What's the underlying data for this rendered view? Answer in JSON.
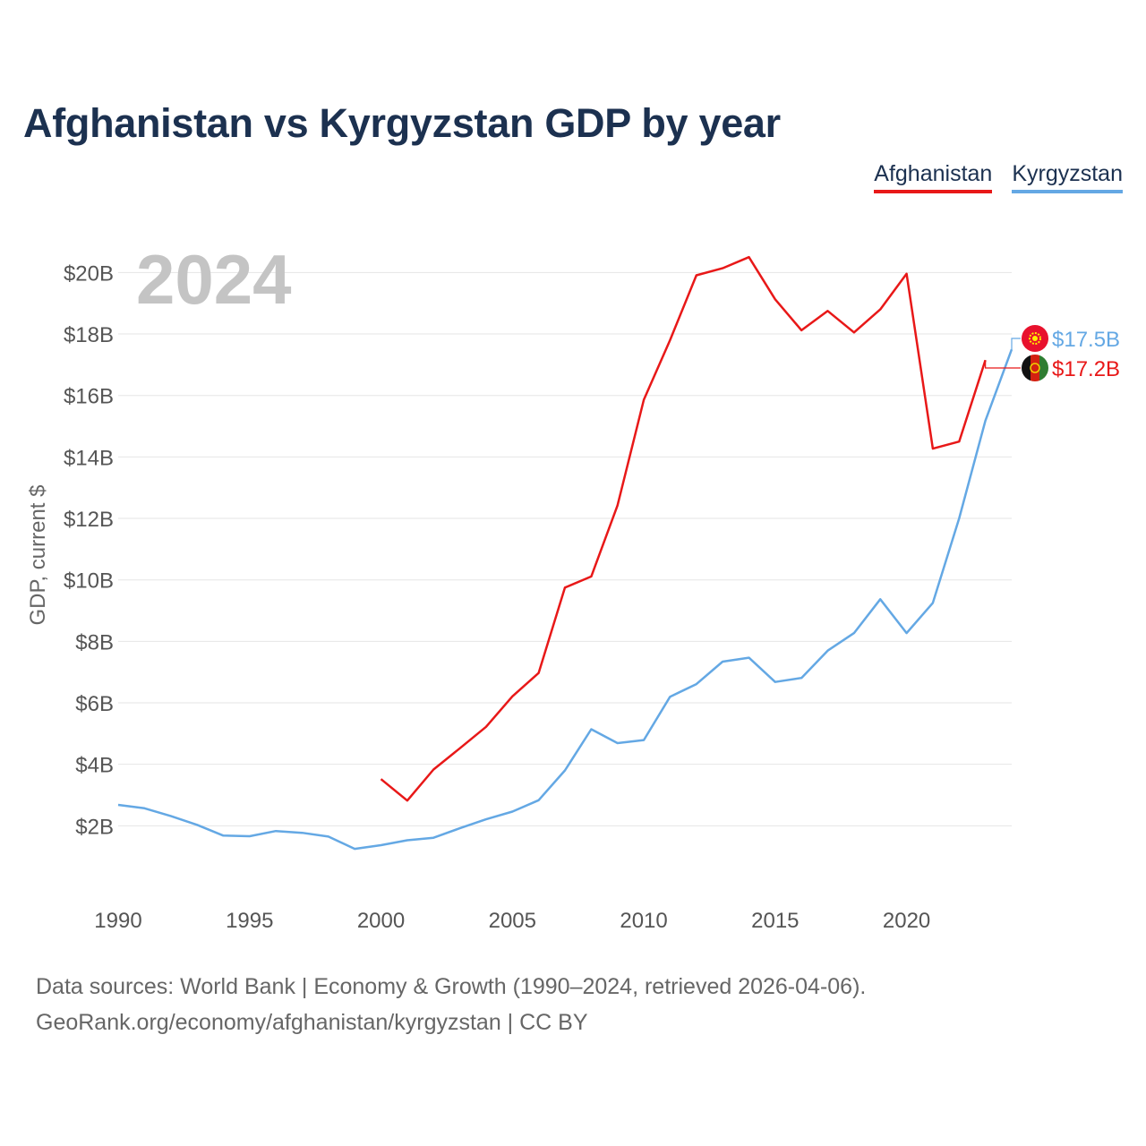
{
  "title": "Afghanistan vs Kyrgyzstan GDP by year",
  "legend": [
    {
      "label": "Afghanistan",
      "color": "#e81818"
    },
    {
      "label": "Kyrgyzstan",
      "color": "#64a8e4"
    }
  ],
  "footer": {
    "line1": "Data sources: World Bank | Economy & Growth (1990–2024, retrieved 2026-04-06).",
    "line2": "GeoRank.org/economy/afghanistan/kyrgyzstan | CC BY"
  },
  "chart_data": {
    "type": "line",
    "title": "Afghanistan vs Kyrgyzstan GDP by year",
    "year_label": "2024",
    "ylabel": "GDP, current $",
    "xlabel": "",
    "xlim": [
      1990,
      2024
    ],
    "ylim": [
      0,
      21
    ],
    "x_ticks": [
      {
        "value": 1990,
        "label": "1990"
      },
      {
        "value": 1995,
        "label": "1995"
      },
      {
        "value": 2000,
        "label": "2000"
      },
      {
        "value": 2005,
        "label": "2005"
      },
      {
        "value": 2010,
        "label": "2010"
      },
      {
        "value": 2015,
        "label": "2015"
      },
      {
        "value": 2020,
        "label": "2020"
      }
    ],
    "y_ticks": [
      {
        "value": 2,
        "label": "$2B"
      },
      {
        "value": 4,
        "label": "$4B"
      },
      {
        "value": 6,
        "label": "$6B"
      },
      {
        "value": 8,
        "label": "$8B"
      },
      {
        "value": 10,
        "label": "$10B"
      },
      {
        "value": 12,
        "label": "$12B"
      },
      {
        "value": 14,
        "label": "$14B"
      },
      {
        "value": 16,
        "label": "$16B"
      },
      {
        "value": 18,
        "label": "$18B"
      },
      {
        "value": 20,
        "label": "$20B"
      }
    ],
    "grid": true,
    "units": "billions USD",
    "series": [
      {
        "name": "Afghanistan",
        "color": "#e81818",
        "end_label": "$17.2B",
        "flag": "afghanistan-flag-icon",
        "x": [
          2000,
          2001,
          2002,
          2003,
          2004,
          2005,
          2006,
          2007,
          2008,
          2009,
          2010,
          2011,
          2012,
          2013,
          2014,
          2015,
          2016,
          2017,
          2018,
          2019,
          2020,
          2021,
          2022,
          2023
        ],
        "values": [
          3.52,
          2.82,
          3.83,
          4.52,
          5.22,
          6.21,
          6.97,
          9.75,
          10.11,
          12.42,
          15.86,
          17.8,
          19.91,
          20.14,
          20.5,
          19.13,
          18.12,
          18.75,
          18.05,
          18.8,
          19.96,
          14.27,
          14.5,
          17.15
        ]
      },
      {
        "name": "Kyrgyzstan",
        "color": "#64a8e4",
        "end_label": "$17.5B",
        "flag": "kyrgyzstan-flag-icon",
        "x": [
          1990,
          1991,
          1992,
          1993,
          1994,
          1995,
          1996,
          1997,
          1998,
          1999,
          2000,
          2001,
          2002,
          2003,
          2004,
          2005,
          2006,
          2007,
          2008,
          2009,
          2010,
          2011,
          2012,
          2013,
          2014,
          2015,
          2016,
          2017,
          2018,
          2019,
          2020,
          2021,
          2022,
          2023,
          2024
        ],
        "values": [
          2.68,
          2.57,
          2.32,
          2.03,
          1.68,
          1.66,
          1.83,
          1.77,
          1.65,
          1.25,
          1.37,
          1.53,
          1.61,
          1.92,
          2.21,
          2.46,
          2.83,
          3.8,
          5.14,
          4.69,
          4.79,
          6.2,
          6.61,
          7.34,
          7.47,
          6.68,
          6.81,
          7.7,
          8.27,
          9.37,
          8.27,
          9.25,
          12.0,
          15.18,
          17.5
        ]
      }
    ]
  }
}
